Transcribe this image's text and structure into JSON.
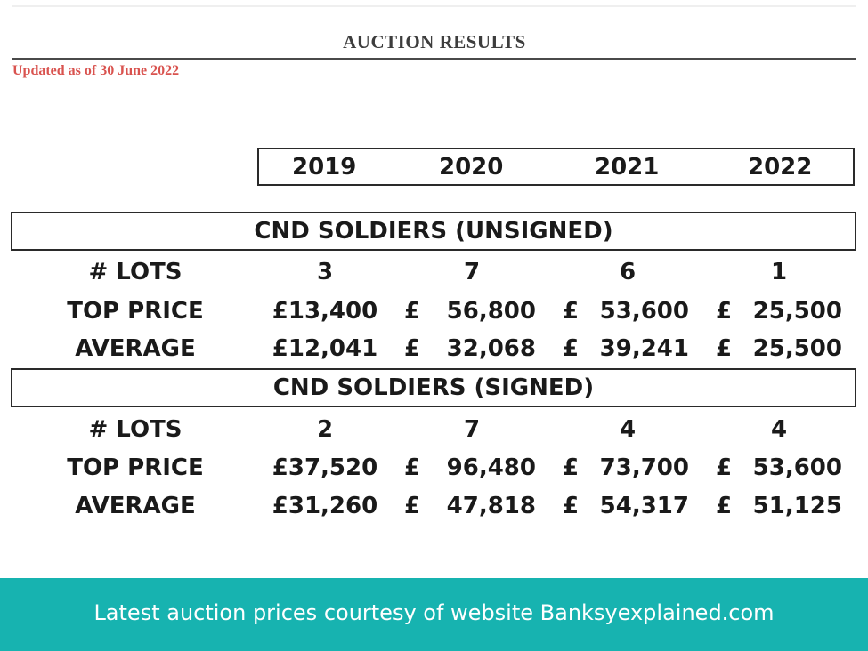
{
  "document": {
    "heading": "AUCTION RESULTS",
    "updated": "Updated as of 30 June 2022"
  },
  "years": [
    "2019",
    "2020",
    "2021",
    "2022"
  ],
  "sections": [
    {
      "title": "CND SOLDIERS (UNSIGNED)",
      "rows": [
        {
          "label": "# LOTS",
          "y2019": "3",
          "y2020": "7",
          "y2021": "6",
          "y2022": "1"
        },
        {
          "label": "TOP PRICE",
          "y2019": "£13,400",
          "y2020": "56,800",
          "y2021": "53,600",
          "y2022": "25,500"
        },
        {
          "label": "AVERAGE",
          "y2019": "£12,041",
          "y2020": "32,068",
          "y2021": "39,241",
          "y2022": "25,500"
        }
      ]
    },
    {
      "title": "CND SOLDIERS (SIGNED)",
      "rows": [
        {
          "label": "# LOTS",
          "y2019": "2",
          "y2020": "7",
          "y2021": "4",
          "y2022": "4"
        },
        {
          "label": "TOP PRICE",
          "y2019": "£37,520",
          "y2020": "96,480",
          "y2021": "73,700",
          "y2022": "53,600"
        },
        {
          "label": "AVERAGE",
          "y2019": "£31,260",
          "y2020": "47,818",
          "y2021": "54,317",
          "y2022": "51,125"
        }
      ]
    }
  ],
  "currency_symbol": "£",
  "footer": {
    "caption": "Latest auction prices courtesy of website Banksyexplained.com",
    "background_color": "#17b3b0"
  }
}
